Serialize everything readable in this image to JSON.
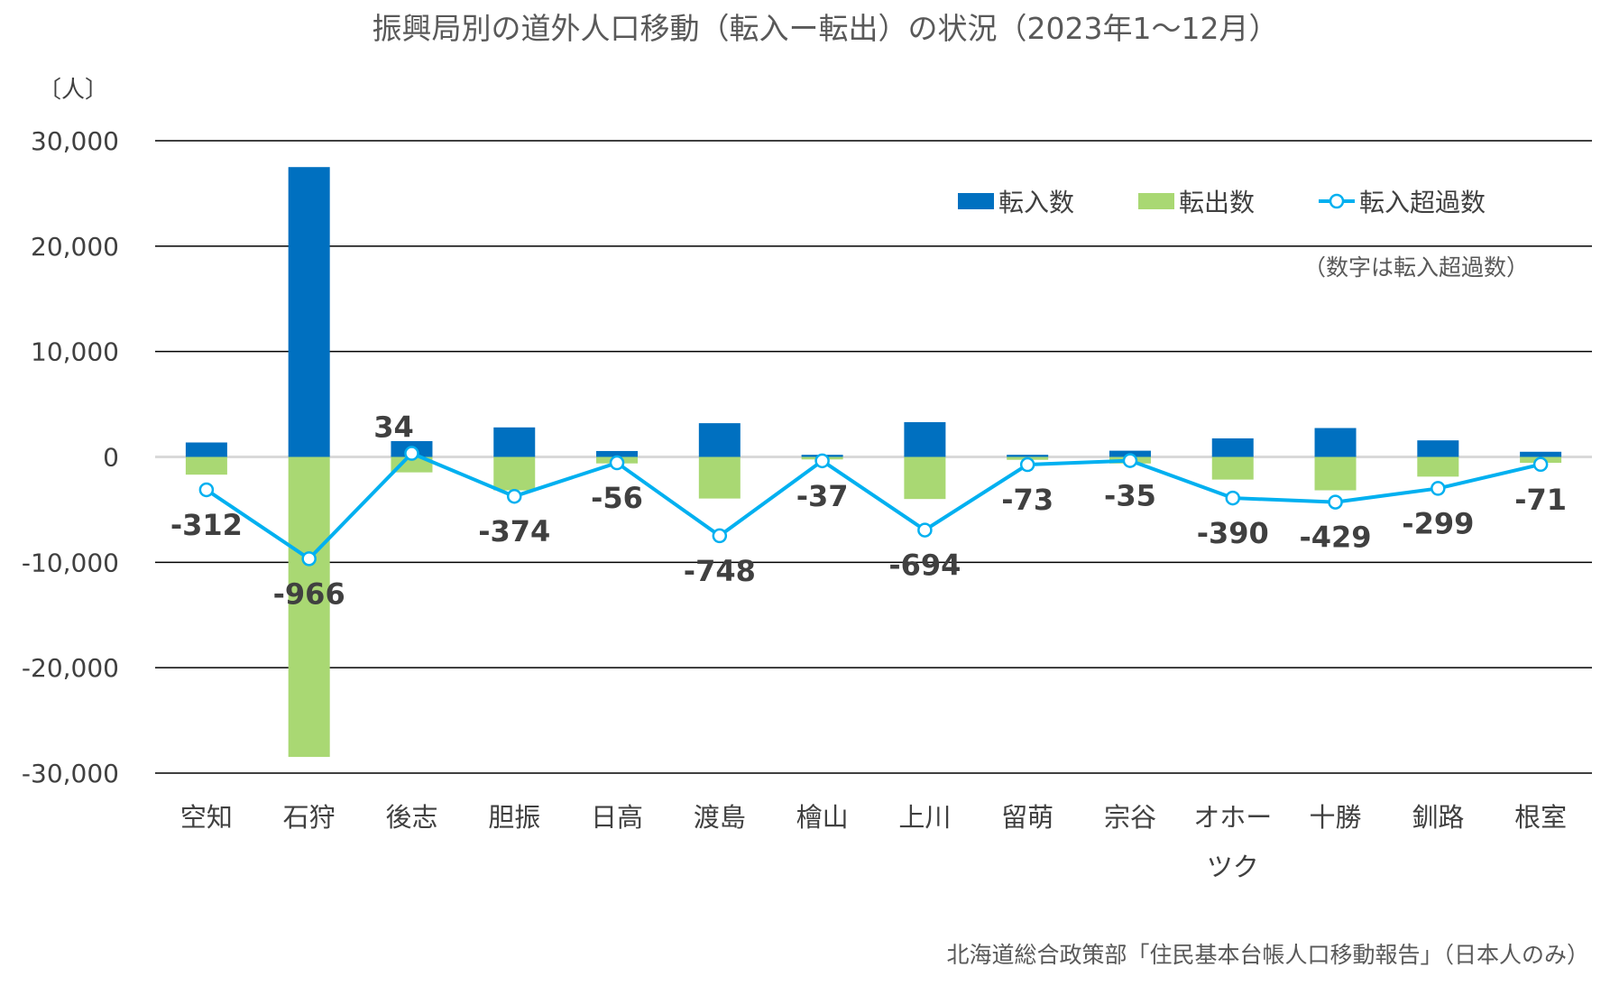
{
  "chart_data": {
    "type": "bar",
    "title": "振興局別の道外人口移動（転入ー転出）の状況（2023年1～12月）",
    "ylabel": "〔人〕",
    "note": "（数字は転入超過数）",
    "source": "北海道総合政策部「住民基本台帳人口移動報告」（日本人のみ）",
    "ylim": [
      -30000,
      30000
    ],
    "yticks": [
      30000,
      20000,
      10000,
      0,
      -10000,
      -20000,
      -30000
    ],
    "ytick_labels": [
      "30,000",
      "20,000",
      "10,000",
      "0",
      "-10,000",
      "-20,000",
      "-30,000"
    ],
    "grid": true,
    "legend_position": "top-right",
    "categories": [
      "空知",
      "石狩",
      "後志",
      "胆振",
      "日高",
      "渡島",
      "檜山",
      "上川",
      "留萌",
      "宗谷",
      "オホー\nツク",
      "十勝",
      "釧路",
      "根室"
    ],
    "series": [
      {
        "name": "転入数",
        "type": "bar",
        "color": "#0070C0",
        "values": [
          1370,
          27500,
          1500,
          2800,
          560,
          3200,
          200,
          3300,
          200,
          590,
          1760,
          2740,
          1570,
          490
        ]
      },
      {
        "name": "転出数",
        "type": "bar",
        "color": "#A9D873",
        "values": [
          -1682,
          -28466,
          -1466,
          -3174,
          -616,
          -3948,
          -237,
          -3994,
          -273,
          -625,
          -2150,
          -3169,
          -1869,
          -561
        ]
      },
      {
        "name": "転入超過数",
        "type": "line",
        "color": "#00B0F0",
        "secondary_axis": true,
        "values": [
          -312,
          -966,
          34,
          -374,
          -56,
          -748,
          -37,
          -694,
          -73,
          -35,
          -390,
          -429,
          -299,
          -71
        ]
      }
    ],
    "data_labels": [
      "-312",
      "-966",
      "34",
      "-374",
      "-56",
      "-748",
      "-37",
      "-694",
      "-73",
      "-35",
      "-390",
      "-429",
      "-299",
      "-71"
    ]
  }
}
